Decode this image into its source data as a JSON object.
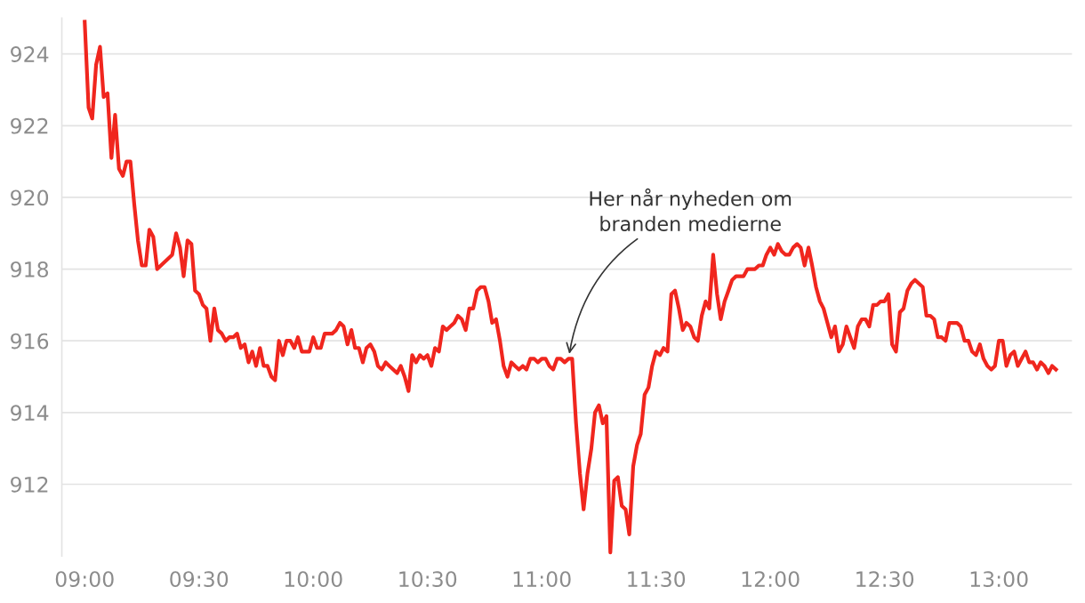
{
  "chart_data": {
    "type": "line",
    "x": [
      9,
      9.017,
      9.033,
      9.05,
      9.067,
      9.083,
      9.1,
      9.117,
      9.133,
      9.15,
      9.167,
      9.183,
      9.2,
      9.217,
      9.233,
      9.25,
      9.267,
      9.283,
      9.3,
      9.317,
      9.383,
      9.4,
      9.417,
      9.433,
      9.45,
      9.467,
      9.483,
      9.5,
      9.517,
      9.533,
      9.55,
      9.567,
      9.583,
      9.6,
      9.617,
      9.633,
      9.65,
      9.667,
      9.683,
      9.7,
      9.717,
      9.733,
      9.75,
      9.767,
      9.783,
      9.8,
      9.817,
      9.833,
      9.85,
      9.867,
      9.883,
      9.9,
      9.917,
      9.933,
      9.95,
      9.983,
      10,
      10.017,
      10.033,
      10.05,
      10.083,
      10.1,
      10.117,
      10.133,
      10.15,
      10.167,
      10.183,
      10.2,
      10.217,
      10.233,
      10.25,
      10.267,
      10.283,
      10.3,
      10.317,
      10.333,
      10.35,
      10.367,
      10.383,
      10.4,
      10.417,
      10.433,
      10.45,
      10.467,
      10.483,
      10.5,
      10.517,
      10.533,
      10.55,
      10.567,
      10.583,
      10.6,
      10.617,
      10.633,
      10.65,
      10.667,
      10.683,
      10.7,
      10.717,
      10.733,
      10.75,
      10.767,
      10.783,
      10.8,
      10.817,
      10.833,
      10.85,
      10.867,
      10.883,
      10.9,
      10.917,
      10.933,
      10.95,
      10.967,
      10.983,
      11,
      11.017,
      11.033,
      11.05,
      11.067,
      11.083,
      11.1,
      11.117,
      11.133,
      11.15,
      11.167,
      11.183,
      11.2,
      11.217,
      11.233,
      11.25,
      11.267,
      11.283,
      11.3,
      11.317,
      11.333,
      11.35,
      11.367,
      11.383,
      11.4,
      11.417,
      11.433,
      11.45,
      11.467,
      11.483,
      11.5,
      11.517,
      11.533,
      11.55,
      11.567,
      11.583,
      11.6,
      11.617,
      11.633,
      11.65,
      11.667,
      11.683,
      11.7,
      11.717,
      11.733,
      11.75,
      11.767,
      11.783,
      11.8,
      11.817,
      11.833,
      11.85,
      11.867,
      11.883,
      11.9,
      11.917,
      11.933,
      11.95,
      11.967,
      11.983,
      12,
      12.017,
      12.033,
      12.05,
      12.067,
      12.083,
      12.1,
      12.117,
      12.133,
      12.15,
      12.167,
      12.183,
      12.2,
      12.217,
      12.233,
      12.25,
      12.267,
      12.283,
      12.3,
      12.317,
      12.333,
      12.35,
      12.367,
      12.383,
      12.4,
      12.417,
      12.433,
      12.45,
      12.467,
      12.483,
      12.5,
      12.517,
      12.533,
      12.55,
      12.567,
      12.583,
      12.6,
      12.617,
      12.633,
      12.65,
      12.667,
      12.683,
      12.7,
      12.717,
      12.733,
      12.75,
      12.767,
      12.783,
      12.8,
      12.817,
      12.833,
      12.85,
      12.867,
      12.883,
      12.9,
      12.917,
      12.933,
      12.95,
      12.967,
      12.983,
      13,
      13.017,
      13.033,
      13.05,
      13.067,
      13.083,
      13.1,
      13.117,
      13.133,
      13.15,
      13.167,
      13.183,
      13.2,
      13.217,
      13.233,
      13.25
    ],
    "series": [
      {
        "color": "#f0261e",
        "values": [
          924.9,
          922.5,
          922.2,
          923.7,
          924.2,
          922.8,
          922.9,
          921.1,
          922.3,
          920.8,
          920.6,
          921.0,
          921.0,
          919.8,
          918.8,
          918.1,
          918.1,
          919.1,
          918.9,
          918.0,
          918.4,
          919.0,
          918.6,
          917.8,
          918.8,
          918.7,
          917.4,
          917.3,
          917.0,
          916.9,
          916.0,
          916.9,
          916.3,
          916.2,
          916.0,
          916.1,
          916.1,
          916.2,
          915.8,
          915.9,
          915.4,
          915.7,
          915.3,
          915.8,
          915.3,
          915.3,
          915.0,
          914.9,
          916.0,
          915.6,
          916.0,
          916.0,
          915.8,
          916.1,
          915.7,
          915.7,
          916.1,
          915.8,
          915.8,
          916.2,
          916.2,
          916.3,
          916.5,
          916.4,
          915.9,
          916.3,
          915.8,
          915.8,
          915.4,
          915.8,
          915.9,
          915.7,
          915.3,
          915.2,
          915.4,
          915.3,
          915.2,
          915.1,
          915.3,
          915.0,
          914.6,
          915.6,
          915.4,
          915.6,
          915.5,
          915.6,
          915.3,
          915.8,
          915.7,
          916.4,
          916.3,
          916.4,
          916.5,
          916.7,
          916.6,
          916.3,
          916.9,
          916.9,
          917.4,
          917.5,
          917.5,
          917.1,
          916.5,
          916.6,
          916.0,
          915.3,
          915.0,
          915.4,
          915.3,
          915.2,
          915.3,
          915.2,
          915.5,
          915.5,
          915.4,
          915.5,
          915.5,
          915.3,
          915.2,
          915.5,
          915.5,
          915.4,
          915.5,
          915.5,
          913.7,
          912.3,
          911.3,
          912.3,
          913.0,
          914.0,
          914.2,
          913.7,
          913.9,
          910.1,
          912.1,
          912.2,
          911.4,
          911.3,
          910.6,
          912.5,
          913.1,
          913.4,
          914.5,
          914.7,
          915.3,
          915.7,
          915.6,
          915.8,
          915.7,
          917.3,
          917.4,
          916.9,
          916.3,
          916.5,
          916.4,
          916.1,
          916.0,
          916.7,
          917.1,
          916.9,
          918.4,
          917.3,
          916.6,
          917.1,
          917.4,
          917.7,
          917.8,
          917.8,
          917.8,
          918.0,
          918.0,
          918.0,
          918.1,
          918.1,
          918.4,
          918.6,
          918.4,
          918.7,
          918.5,
          918.4,
          918.4,
          918.6,
          918.7,
          918.6,
          918.1,
          918.6,
          918.1,
          917.5,
          917.1,
          916.9,
          916.5,
          916.1,
          916.4,
          915.7,
          915.9,
          916.4,
          916.1,
          915.8,
          916.4,
          916.6,
          916.6,
          916.4,
          917.0,
          917.0,
          917.1,
          917.1,
          917.3,
          915.9,
          915.7,
          916.8,
          916.9,
          917.4,
          917.6,
          917.7,
          917.6,
          917.5,
          916.7,
          916.7,
          916.6,
          916.1,
          916.1,
          916.0,
          916.5,
          916.5,
          916.5,
          916.4,
          916.0,
          916.0,
          915.7,
          915.6,
          915.9,
          915.5,
          915.3,
          915.2,
          915.3,
          916.0,
          916.0,
          915.3,
          915.6,
          915.7,
          915.3,
          915.5,
          915.7,
          915.4,
          915.4,
          915.2,
          915.4,
          915.3,
          915.1,
          915.3,
          915.2
        ]
      }
    ],
    "xlim": [
      8.9,
      13.32
    ],
    "xticks": [
      {
        "value": 9,
        "label": "09:00"
      },
      {
        "value": 9.5,
        "label": "09:30"
      },
      {
        "value": 10,
        "label": "10:00"
      },
      {
        "value": 10.5,
        "label": "10:30"
      },
      {
        "value": 11,
        "label": "11:00"
      },
      {
        "value": 11.5,
        "label": "11:30"
      },
      {
        "value": 12,
        "label": "12:00"
      },
      {
        "value": 12.5,
        "label": "12:30"
      },
      {
        "value": 13,
        "label": "13:00"
      }
    ],
    "ylim": [
      910,
      925
    ],
    "yticks": [
      912,
      914,
      916,
      918,
      920,
      922,
      924
    ],
    "grid": "y",
    "legend": false,
    "marker": "none",
    "line_style": "solid",
    "annotations": [
      {
        "text": "Her når nyheden om\nbranden medierne",
        "x": 11.117,
        "y": 915.5
      }
    ]
  }
}
